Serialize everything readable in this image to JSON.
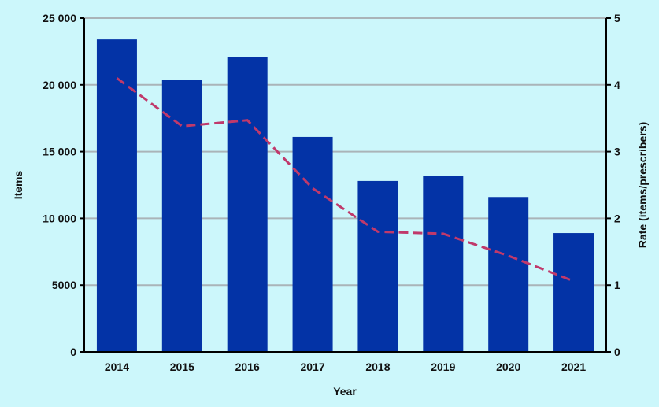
{
  "chart_data": {
    "type": "bar",
    "title": "",
    "categories": [
      "2014",
      "2015",
      "2016",
      "2017",
      "2018",
      "2019",
      "2020",
      "2021"
    ],
    "series": [
      {
        "name": "",
        "type": "bar",
        "axis": "left",
        "color": "#0333a6",
        "values": [
          23400,
          20400,
          22100,
          16100,
          12800,
          13200,
          11600,
          8900
        ]
      },
      {
        "name": "",
        "type": "line",
        "axis": "right",
        "style": "dashed",
        "color": "#c0396b",
        "values": [
          4.1,
          3.38,
          3.47,
          2.45,
          1.8,
          1.77,
          1.44,
          1.06
        ]
      }
    ],
    "xlabel": "Year",
    "ylabel": "Items",
    "y2label": "Rate (items/prescribers)",
    "ylim": [
      0,
      25000
    ],
    "y2lim": [
      0,
      5
    ],
    "yticks": [
      "0",
      "5000",
      "10 000",
      "15 000",
      "20 000",
      "25 000"
    ],
    "y2ticks": [
      "0",
      "1",
      "2",
      "3",
      "4",
      "5"
    ],
    "grid": true,
    "colors": {
      "background": "#ccf7fb",
      "grid": "#aab4b8",
      "axis": "#000000"
    }
  }
}
